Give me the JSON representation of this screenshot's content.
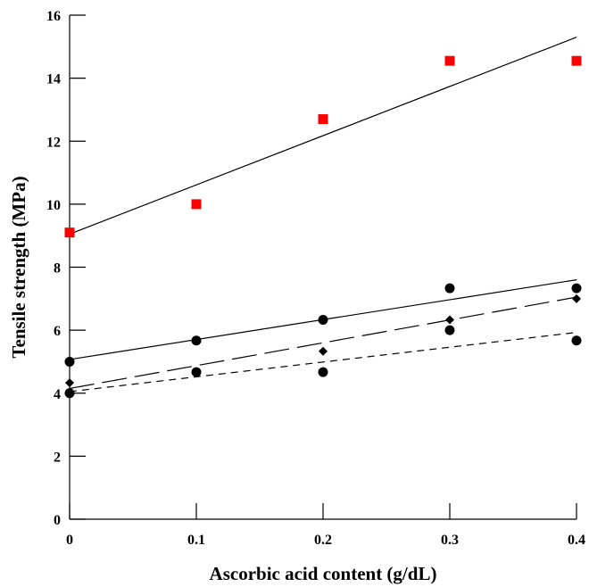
{
  "chart_data": {
    "type": "scatter",
    "xlabel": "Ascorbic acid content (g/dL)",
    "ylabel": "Tensile strength (MPa)",
    "xlim": [
      0,
      0.4
    ],
    "ylim": [
      0,
      16
    ],
    "x_ticks": [
      "0",
      "0.1",
      "0.2",
      "0.3",
      "0.4"
    ],
    "y_ticks": [
      "0",
      "2",
      "4",
      "6",
      "8",
      "10",
      "12",
      "14",
      "16"
    ],
    "grid": false,
    "legend": "none",
    "series": [
      {
        "marker": "square",
        "color": "#ff0000",
        "x": [
          0,
          0.1,
          0.2,
          0.3,
          0.4
        ],
        "y": [
          9.1,
          10.0,
          12.7,
          14.55,
          14.55
        ],
        "fit": {
          "line_style": "solid",
          "y_at_xmin": 9.05,
          "y_at_xmax": 15.3
        }
      },
      {
        "marker": "circle",
        "color": "#000000",
        "x": [
          0,
          0.1,
          0.2,
          0.3,
          0.4
        ],
        "y": [
          5.0,
          5.67,
          6.33,
          7.33,
          7.33
        ],
        "fit": {
          "line_style": "solid",
          "y_at_xmin": 5.07,
          "y_at_xmax": 7.6
        }
      },
      {
        "marker": "diamond",
        "color": "#000000",
        "x": [
          0,
          0.2,
          0.3,
          0.4
        ],
        "y": [
          4.33,
          5.33,
          6.33,
          7.0
        ],
        "fit": {
          "line_style": "long-dash",
          "y_at_xmin": 4.15,
          "y_at_xmax": 7.05
        }
      },
      {
        "marker": "circle",
        "color": "#000000",
        "x": [
          0,
          0.1,
          0.2,
          0.3,
          0.4
        ],
        "y": [
          4.0,
          4.67,
          4.67,
          6.0,
          5.67
        ],
        "fit": {
          "line_style": "short-dash",
          "y_at_xmin": 4.05,
          "y_at_xmax": 5.93
        }
      }
    ]
  }
}
